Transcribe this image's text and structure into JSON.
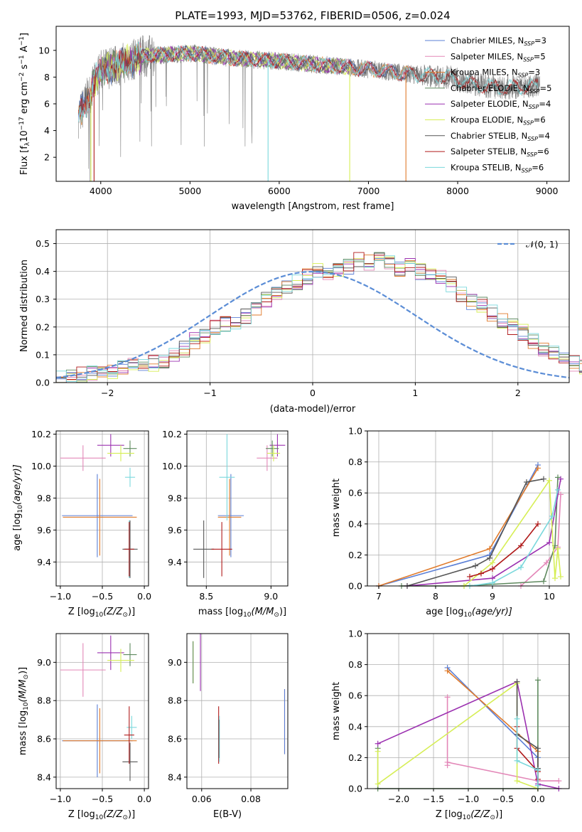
{
  "title": "PLATE=1993, MJD=53762, FIBERID=0506, z=0.024",
  "colors": {
    "Chabrier MILES": "#5b7fd6",
    "Salpeter MILES": "#e387b8",
    "Kroupa MILES": "#e07a2a",
    "Chabrier ELODIE": "#5f8a5f",
    "Salpeter ELODIE": "#9b30b0",
    "Kroupa ELODIE": "#d6ee55",
    "Chabrier STELIB": "#555555",
    "Salpeter STELIB": "#b01a1a",
    "Kroupa STELIB": "#7ad8dc",
    "data": "#808080",
    "normal": "#5b8dd6"
  },
  "spectrum": {
    "xlabel": "wavelength [Angstrom, rest frame]",
    "ylabel_main": "Flux [f",
    "ylabel_sub": "λ",
    "ylabel_rest": "10",
    "ylabel_exp": "−17",
    "ylabel_unit": " erg cm",
    "ylabel_cm_exp": "−2",
    "ylabel_s": " s",
    "ylabel_s_exp": "−1",
    "ylabel_A": " A",
    "ylabel_A_exp": "−1",
    "ylabel_end": "]",
    "xticks": [
      "4000",
      "5000",
      "6000",
      "7000",
      "8000",
      "9000"
    ],
    "yticks": [
      "2",
      "4",
      "6",
      "8",
      "10"
    ],
    "legend": [
      {
        "name": "Chabrier MILES",
        "label": "Chabrier MILES, N",
        "sub": "SSP",
        "n": "=3"
      },
      {
        "name": "Salpeter MILES",
        "label": "Salpeter MILES, N",
        "sub": "SSP",
        "n": "=5"
      },
      {
        "name": "Kroupa MILES",
        "label": "Kroupa MILES, N",
        "sub": "SSP",
        "n": "=3"
      },
      {
        "name": "Chabrier ELODIE",
        "label": "Chabrier ELODIE, N",
        "sub": "SSP",
        "n": "=5"
      },
      {
        "name": "Salpeter ELODIE",
        "label": "Salpeter ELODIE, N",
        "sub": "SSP",
        "n": "=4"
      },
      {
        "name": "Kroupa ELODIE",
        "label": "Kroupa ELODIE, N",
        "sub": "SSP",
        "n": "=6"
      },
      {
        "name": "Chabrier STELIB",
        "label": "Chabrier STELIB, N",
        "sub": "SSP",
        "n": "=4"
      },
      {
        "name": "Salpeter STELIB",
        "label": "Salpeter STELIB, N",
        "sub": "SSP",
        "n": "=6"
      },
      {
        "name": "Kroupa STELIB",
        "label": "Kroupa STELIB, N",
        "sub": "SSP",
        "n": "=6"
      }
    ]
  },
  "residuals": {
    "xlabel": "(data-model)/error",
    "ylabel": "Normed distribution",
    "legend_label": "𝒩(0, 1)",
    "xticks": [
      "−2",
      "−1",
      "0",
      "1",
      "2"
    ],
    "yticks": [
      "0.0",
      "0.1",
      "0.2",
      "0.3",
      "0.4",
      "0.5"
    ]
  },
  "panels": {
    "age_label": "age  [log",
    "age_sub": "10",
    "age_rest": "(age/yr)]",
    "z_label": "Z [log",
    "z_sub": "10",
    "z_rest": "(Z/Z",
    "z_sun": "⊙",
    "z_end": ")]",
    "mass_label": "mass [log",
    "mass_sub": "10",
    "mass_rest": "(M/M",
    "mass_sun": "⊙",
    "mass_end": ")]",
    "ebv_label": "E(B-V)",
    "mw_label": "mass weight",
    "z_ticks": [
      "−1.0",
      "−0.5",
      "0.0"
    ],
    "age_ticks": [
      "9.4",
      "9.6",
      "9.8",
      "10.0",
      "10.2"
    ],
    "mass_ticks_x": [
      "8.5",
      "9.0"
    ],
    "mass_ticks_y": [
      "8.4",
      "8.6",
      "8.8",
      "9.0"
    ],
    "ebv_ticks": [
      "0.06",
      "0.08"
    ],
    "mw_ticks": [
      "0.0",
      "0.2",
      "0.4",
      "0.6",
      "0.8",
      "1.0"
    ],
    "age_x_ticks": [
      "7",
      "8",
      "9",
      "10"
    ],
    "zfull_ticks": [
      "−2.0",
      "−1.5",
      "−1.0",
      "−0.5",
      "0.0"
    ]
  },
  "chart_data": [
    {
      "type": "line",
      "title": "PLATE=1993, MJD=53762, FIBERID=0506, z=0.024",
      "xlabel": "wavelength [Angstrom, rest frame]",
      "ylabel": "Flux [fλ10^−17 erg cm^−2 s^−1 A^−1]",
      "xlim": [
        3500,
        9250
      ],
      "ylim": [
        0.2,
        11.8
      ],
      "continuum": {
        "x": [
          3750,
          4000,
          4500,
          5000,
          5500,
          6000,
          6500,
          7000,
          7500,
          7900,
          8200,
          8500,
          8800,
          8920
        ],
        "y": [
          5.0,
          8.5,
          9.6,
          9.8,
          9.4,
          9.2,
          8.9,
          8.6,
          8.2,
          8.0,
          7.4,
          7.2,
          7.3,
          7.4
        ]
      },
      "series": [
        {
          "name": "Chabrier MILES",
          "n_ssp": 3,
          "x_range": [
            3750,
            7450
          ]
        },
        {
          "name": "Salpeter MILES",
          "n_ssp": 5,
          "x_range": [
            3750,
            7450
          ]
        },
        {
          "name": "Kroupa MILES",
          "n_ssp": 3,
          "x_range": [
            3750,
            7450
          ]
        },
        {
          "name": "Chabrier ELODIE",
          "n_ssp": 5,
          "x_range": [
            3900,
            6800
          ]
        },
        {
          "name": "Salpeter ELODIE",
          "n_ssp": 4,
          "x_range": [
            3900,
            6800
          ]
        },
        {
          "name": "Kroupa ELODIE",
          "n_ssp": 6,
          "x_range": [
            3900,
            6800
          ]
        },
        {
          "name": "Chabrier STELIB",
          "n_ssp": 4,
          "x_range": [
            3750,
            8900
          ]
        },
        {
          "name": "Salpeter STELIB",
          "n_ssp": 6,
          "x_range": [
            3750,
            8900
          ]
        },
        {
          "name": "Kroupa STELIB",
          "n_ssp": 6,
          "x_range": [
            3750,
            8900
          ]
        }
      ]
    },
    {
      "type": "bar",
      "xlabel": "(data-model)/error",
      "ylabel": "Normed distribution",
      "xlim": [
        -2.5,
        2.5
      ],
      "ylim": [
        0,
        0.55
      ],
      "bin_edges_start": -2.5,
      "bin_width": 0.1,
      "base_density": [
        0.02,
        0.022,
        0.028,
        0.032,
        0.036,
        0.042,
        0.055,
        0.06,
        0.058,
        0.07,
        0.08,
        0.1,
        0.12,
        0.15,
        0.17,
        0.2,
        0.21,
        0.22,
        0.24,
        0.27,
        0.3,
        0.32,
        0.34,
        0.36,
        0.38,
        0.4,
        0.4,
        0.41,
        0.42,
        0.44,
        0.43,
        0.44,
        0.43,
        0.41,
        0.42,
        0.4,
        0.4,
        0.38,
        0.35,
        0.32,
        0.29,
        0.28,
        0.25,
        0.22,
        0.2,
        0.18,
        0.15,
        0.12,
        0.11,
        0.09,
        0.07,
        0.06,
        0.06,
        0.05,
        0.045,
        0.04,
        0.032,
        0.03,
        0.025,
        0.022
      ],
      "normal_legend": "𝒩(0, 1)",
      "normal_mean": 0,
      "normal_sigma": 1
    },
    {
      "type": "scatter",
      "name": "age vs Z",
      "xlabel": "Z [log10(Z/Z⊙)]",
      "ylabel": "age [log10(age/yr)]",
      "xlim": [
        -1.05,
        0.05
      ],
      "ylim": [
        9.25,
        10.22
      ],
      "points": [
        {
          "series": "Chabrier MILES",
          "x": -0.56,
          "y": 9.69,
          "xerr": 0.42,
          "yerr": 0.26
        },
        {
          "series": "Kroupa MILES",
          "x": -0.53,
          "y": 9.68,
          "xerr": 0.44,
          "yerr": 0.24
        },
        {
          "series": "Salpeter MILES",
          "x": -0.73,
          "y": 10.05,
          "xerr": 0.27,
          "yerr": 0.08
        },
        {
          "series": "Salpeter ELODIE",
          "x": -0.4,
          "y": 10.13,
          "xerr": 0.16,
          "yerr": 0.07
        },
        {
          "series": "Chabrier ELODIE",
          "x": -0.17,
          "y": 10.11,
          "xerr": 0.08,
          "yerr": 0.05
        },
        {
          "series": "Kroupa ELODIE",
          "x": -0.28,
          "y": 10.08,
          "xerr": 0.16,
          "yerr": 0.05
        },
        {
          "series": "Kroupa STELIB",
          "x": -0.18,
          "y": 9.48,
          "xerr": 0.05,
          "yerr": 0.18
        },
        {
          "series": "Chabrier STELIB",
          "x": -0.17,
          "y": 9.48,
          "xerr": 0.09,
          "yerr": 0.18
        },
        {
          "series": "Salpeter STELIB",
          "x": -0.18,
          "y": 9.48,
          "xerr": 0.06,
          "yerr": 0.17
        },
        {
          "series": "Kroupa STELIB",
          "x": -0.17,
          "y": 9.93,
          "xerr": 0.06,
          "yerr": 0.06
        }
      ]
    },
    {
      "type": "scatter",
      "name": "age vs mass",
      "xlabel": "mass [log10(M/M⊙)]",
      "ylabel": "age [log10(age/yr)]",
      "xlim": [
        8.35,
        9.13
      ],
      "ylim": [
        9.25,
        10.22
      ],
      "points": [
        {
          "series": "Chabrier MILES",
          "x": 8.69,
          "y": 9.69,
          "xerr": 0.1,
          "yerr": 0.26
        },
        {
          "series": "Kroupa MILES",
          "x": 8.68,
          "y": 9.68,
          "xerr": 0.09,
          "yerr": 0.24
        },
        {
          "series": "Salpeter MILES",
          "x": 8.97,
          "y": 10.05,
          "xerr": 0.08,
          "yerr": 0.08
        },
        {
          "series": "Salpeter ELODIE",
          "x": 9.05,
          "y": 10.13,
          "xerr": 0.06,
          "yerr": 0.07
        },
        {
          "series": "Chabrier ELODIE",
          "x": 9.01,
          "y": 10.11,
          "xerr": 0.05,
          "yerr": 0.05
        },
        {
          "series": "Kroupa ELODIE",
          "x": 9.02,
          "y": 10.08,
          "xerr": 0.05,
          "yerr": 0.05
        },
        {
          "series": "Chabrier STELIB",
          "x": 8.48,
          "y": 9.48,
          "xerr": 0.08,
          "yerr": 0.18
        },
        {
          "series": "Salpeter STELIB",
          "x": 8.62,
          "y": 9.48,
          "xerr": 0.08,
          "yerr": 0.17
        },
        {
          "series": "Kroupa STELIB",
          "x": 8.66,
          "y": 9.93,
          "xerr": 0.06,
          "yerr": 0.27
        }
      ]
    },
    {
      "type": "line",
      "name": "mass weight vs age",
      "xlabel": "age [log10(age/yr)]",
      "ylabel": "mass weight",
      "xlim": [
        6.8,
        10.35
      ],
      "ylim": [
        0,
        1
      ],
      "series": [
        {
          "name": "Chabrier MILES",
          "x": [
            7.0,
            8.95,
            9.8
          ],
          "y": [
            0.0,
            0.2,
            0.78
          ]
        },
        {
          "name": "Kroupa MILES",
          "x": [
            7.0,
            8.95,
            9.8
          ],
          "y": [
            0.0,
            0.24,
            0.76
          ]
        },
        {
          "name": "Salpeter MILES",
          "x": [
            9.5,
            9.95,
            10.15,
            10.2
          ],
          "y": [
            0.0,
            0.15,
            0.25,
            0.59
          ]
        },
        {
          "name": "Chabrier ELODIE",
          "x": [
            7.4,
            8.5,
            9.9,
            10.1,
            10.15
          ],
          "y": [
            0.0,
            0.0,
            0.03,
            0.26,
            0.7
          ]
        },
        {
          "name": "Salpeter ELODIE",
          "x": [
            7.5,
            9.0,
            10.0,
            10.2
          ],
          "y": [
            0.0,
            0.05,
            0.28,
            0.69
          ]
        },
        {
          "name": "Kroupa ELODIE",
          "x": [
            8.5,
            9.0,
            10.0,
            10.1,
            10.15,
            10.2
          ],
          "y": [
            0.0,
            0.15,
            0.68,
            0.05,
            0.24,
            0.06
          ]
        },
        {
          "name": "Chabrier STELIB",
          "x": [
            7.5,
            8.7,
            8.95,
            9.6,
            9.9
          ],
          "y": [
            0.0,
            0.13,
            0.18,
            0.67,
            0.69
          ]
        },
        {
          "name": "Salpeter STELIB",
          "x": [
            8.6,
            8.8,
            9.0,
            9.5,
            9.8
          ],
          "y": [
            0.06,
            0.08,
            0.11,
            0.26,
            0.4
          ]
        },
        {
          "name": "Kroupa STELIB",
          "x": [
            8.6,
            9.0,
            9.5,
            10.05,
            10.15
          ],
          "y": [
            0.0,
            0.02,
            0.12,
            0.45,
            0.62
          ]
        }
      ]
    },
    {
      "type": "scatter",
      "name": "mass vs Z",
      "xlabel": "Z [log10(Z/Z⊙)]",
      "ylabel": "mass [log10(M/M⊙)]",
      "xlim": [
        -1.05,
        0.05
      ],
      "ylim": [
        8.34,
        9.15
      ],
      "points": [
        {
          "series": "Chabrier MILES",
          "x": -0.56,
          "y": 8.59,
          "xerr": 0.42,
          "yerr": 0.19
        },
        {
          "series": "Kroupa MILES",
          "x": -0.53,
          "y": 8.59,
          "xerr": 0.44,
          "yerr": 0.17
        },
        {
          "series": "Salpeter MILES",
          "x": -0.73,
          "y": 8.96,
          "xerr": 0.27,
          "yerr": 0.14
        },
        {
          "series": "Salpeter ELODIE",
          "x": -0.4,
          "y": 9.05,
          "xerr": 0.16,
          "yerr": 0.09
        },
        {
          "series": "Chabrier ELODIE",
          "x": -0.17,
          "y": 9.04,
          "xerr": 0.08,
          "yerr": 0.06
        },
        {
          "series": "Kroupa ELODIE",
          "x": -0.28,
          "y": 9.01,
          "xerr": 0.16,
          "yerr": 0.06
        },
        {
          "series": "Kroupa STELIB",
          "x": -0.15,
          "y": 8.66,
          "xerr": 0.06,
          "yerr": 0.06
        },
        {
          "series": "Chabrier STELIB",
          "x": -0.17,
          "y": 8.48,
          "xerr": 0.09,
          "yerr": 0.1
        },
        {
          "series": "Salpeter STELIB",
          "x": -0.18,
          "y": 8.62,
          "xerr": 0.06,
          "yerr": 0.15
        }
      ]
    },
    {
      "type": "scatter",
      "name": "mass vs E(B-V)",
      "xlabel": "E(B-V)",
      "ylabel": "mass [log10(M/M⊙)]",
      "xlim": [
        0.054,
        0.095
      ],
      "ylim": [
        8.34,
        9.15
      ],
      "points": [
        {
          "series": "Kroupa ELODIE",
          "x": 0.0565,
          "y": 9.0,
          "yerr": 0.11
        },
        {
          "series": "Chabrier ELODIE",
          "x": 0.0565,
          "y": 9.0,
          "yerr": 0.11
        },
        {
          "series": "Salpeter ELODIE",
          "x": 0.0595,
          "y": 9.0,
          "yerr": 0.15
        },
        {
          "series": "Salpeter STELIB",
          "x": 0.0669,
          "y": 8.62,
          "yerr": 0.15
        },
        {
          "series": "Kroupa STELIB",
          "x": 0.0672,
          "y": 8.6,
          "yerr": 0.12
        },
        {
          "series": "Chabrier STELIB",
          "x": 0.067,
          "y": 8.6,
          "yerr": 0.1
        },
        {
          "series": "Kroupa MILES",
          "x": 0.0937,
          "y": 8.69,
          "yerr": 0.17
        },
        {
          "series": "Chabrier MILES",
          "x": 0.0937,
          "y": 8.69,
          "yerr": 0.17
        }
      ]
    },
    {
      "type": "line",
      "name": "mass weight vs Z",
      "xlabel": "Z [log10(Z/Z⊙)]",
      "ylabel": "mass weight",
      "xlim": [
        -2.45,
        0.45
      ],
      "ylim": [
        0,
        1
      ],
      "series": [
        {
          "name": "Chabrier MILES",
          "x": [
            -1.3,
            0.0,
            0.0
          ],
          "y": [
            0.78,
            0.2,
            0.02
          ]
        },
        {
          "name": "Kroupa MILES",
          "x": [
            -1.3,
            0.0,
            0.0
          ],
          "y": [
            0.76,
            0.24,
            0.02
          ]
        },
        {
          "name": "Salpeter MILES",
          "x": [
            -1.3,
            -1.3,
            -1.3,
            0.0,
            0.3
          ],
          "y": [
            0.59,
            0.15,
            0.17,
            0.05,
            0.05
          ]
        },
        {
          "name": "Chabrier ELODIE",
          "x": [
            -2.3,
            -2.3,
            0.0,
            0.0
          ],
          "y": [
            0.26,
            0.0,
            0.0,
            0.7
          ]
        },
        {
          "name": "Salpeter ELODIE",
          "x": [
            -2.3,
            -0.3,
            0.0,
            0.3
          ],
          "y": [
            0.29,
            0.69,
            0.03,
            0.0
          ]
        },
        {
          "name": "Kroupa ELODIE",
          "x": [
            -2.3,
            -2.3,
            -0.3,
            -0.3,
            0.0
          ],
          "y": [
            0.24,
            0.03,
            0.68,
            0.05,
            0.0
          ]
        },
        {
          "name": "Chabrier STELIB",
          "x": [
            -0.3,
            -0.3,
            0.0,
            0.0
          ],
          "y": [
            0.69,
            0.35,
            0.26,
            0.13
          ]
        },
        {
          "name": "Salpeter STELIB",
          "x": [
            -0.3,
            -0.3,
            0.0,
            0.0
          ],
          "y": [
            0.4,
            0.26,
            0.11,
            0.06
          ]
        },
        {
          "name": "Kroupa STELIB",
          "x": [
            -0.3,
            -0.3,
            0.0,
            0.0
          ],
          "y": [
            0.45,
            0.18,
            0.12,
            0.02
          ]
        }
      ]
    }
  ]
}
